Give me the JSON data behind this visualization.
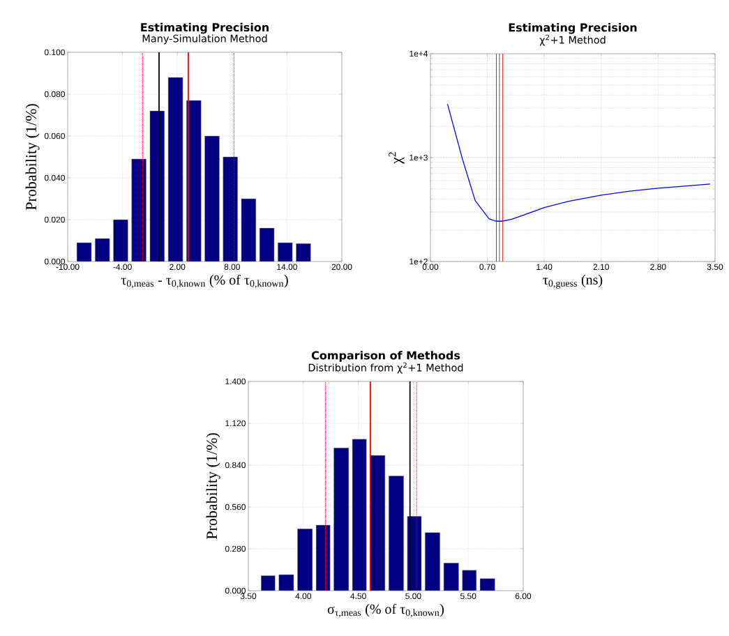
{
  "chart_data": [
    {
      "type": "histogram",
      "title": "Estimating Precision",
      "subtitle": "Many-Simulation Method",
      "xlabel": "τ$_{0,meas}$ - τ$_{0,known}$ (% of τ$_{0,known}$)",
      "ylabel": "Probability (1/%)",
      "color": "#000080",
      "bins": [
        -9.2,
        -7.2,
        -5.2,
        -3.2,
        -1.2,
        0.8,
        2.8,
        4.8,
        6.8,
        8.8,
        10.8,
        12.8,
        14.8,
        16.8
      ],
      "values": [
        0.009,
        0.011,
        0.02,
        0.049,
        0.072,
        0.088,
        0.077,
        0.06,
        0.05,
        0.03,
        0.016,
        0.009,
        0.0086
      ],
      "xlim": [
        -10,
        20
      ],
      "ylim": [
        0,
        0.1
      ],
      "xticks": [
        {
          "value": -10,
          "label": "-10.00"
        },
        {
          "value": -4,
          "label": "-4.00"
        },
        {
          "value": 2,
          "label": "2.00"
        },
        {
          "value": 8,
          "label": "8.00"
        },
        {
          "value": 14,
          "label": "14.00"
        },
        {
          "value": 20,
          "label": "20.00"
        }
      ],
      "yticks": [
        {
          "value": 0,
          "label": "0.000"
        },
        {
          "value": 0.02,
          "label": "0.020"
        },
        {
          "value": 0.04,
          "label": "0.040"
        },
        {
          "value": 0.06,
          "label": "0.060"
        },
        {
          "value": 0.08,
          "label": "0.080"
        },
        {
          "value": 0.1,
          "label": "0.100"
        }
      ],
      "ref_lines": [
        {
          "axis": "x",
          "value": 0,
          "color": "#000000",
          "line_style": "solid"
        },
        {
          "axis": "x",
          "value": 3.2,
          "color": "#ff0000",
          "line_style": "solid"
        },
        {
          "axis": "x",
          "value": -1.8,
          "color": "#ff0000",
          "line_style": "dotted"
        },
        {
          "axis": "x",
          "value": 8.2,
          "color": "#ff0000",
          "line_style": "dotted"
        }
      ],
      "grid": true
    },
    {
      "type": "line",
      "title": "Estimating Precision",
      "subtitle": "χ$^{2}$+1 Method",
      "xlabel": "τ$_{0,guess}$ (ns)",
      "ylabel": "χ$^{2}$",
      "log": "y",
      "series": [
        {
          "color": "#0000ff",
          "x": [
            0.21,
            0.39,
            0.55,
            0.72,
            0.8,
            0.88,
            1.0,
            1.2,
            1.4,
            1.7,
            2.1,
            2.45,
            2.8,
            3.1,
            3.44
          ],
          "values": [
            3280,
            990,
            386,
            258,
            245,
            244,
            255,
            290,
            330,
            380,
            435,
            475,
            507,
            530,
            557
          ]
        }
      ],
      "xlim": [
        0,
        3.5
      ],
      "ylim": [
        100,
        10000
      ],
      "xticks": [
        {
          "value": 0,
          "label": "0.00"
        },
        {
          "value": 0.7,
          "label": "0.70"
        },
        {
          "value": 1.4,
          "label": "1.40"
        },
        {
          "value": 2.1,
          "label": "2.10"
        },
        {
          "value": 2.8,
          "label": "2.80"
        },
        {
          "value": 3.5,
          "label": "3.50"
        }
      ],
      "yticks": [
        {
          "value": 100,
          "label": "1e+2"
        },
        {
          "value": 1000,
          "label": "1e+3"
        },
        {
          "value": 10000,
          "label": "1e+4"
        }
      ],
      "ref_lines": [
        {
          "axis": "x",
          "value": 0.81,
          "color": "#ff0000",
          "line_style": "solid"
        },
        {
          "axis": "x",
          "value": 0.85,
          "color": "#333333",
          "line_style": "solid"
        },
        {
          "axis": "x",
          "value": 0.89,
          "color": "#ff0000",
          "line_style": "solid"
        }
      ],
      "grid": true
    },
    {
      "type": "histogram",
      "title": "Comparison of Methods",
      "subtitle": "Distribution from χ$^{2}$+1 Method",
      "xlabel": "σ$_{τ,meas}$ (% of τ$_{0,known}$)",
      "ylabel": "Probability (1/%)",
      "color": "#000080",
      "bins": [
        3.6,
        3.76,
        3.93,
        4.1,
        4.26,
        4.43,
        4.59,
        4.76,
        4.93,
        5.09,
        5.26,
        5.43,
        5.59,
        5.76
      ],
      "values": [
        0.1,
        0.107,
        0.414,
        0.439,
        0.955,
        1.014,
        0.905,
        0.768,
        0.498,
        0.389,
        0.185,
        0.137,
        0.081
      ],
      "xlim": [
        3.5,
        6
      ],
      "ylim": [
        0,
        1.4
      ],
      "xticks": [
        {
          "value": 3.5,
          "label": "3.50"
        },
        {
          "value": 4,
          "label": "4.00"
        },
        {
          "value": 4.5,
          "label": "4.50"
        },
        {
          "value": 5,
          "label": "5.00"
        },
        {
          "value": 5.5,
          "label": "5.50"
        },
        {
          "value": 6,
          "label": "6.00"
        }
      ],
      "yticks": [
        {
          "value": 0,
          "label": "0.000"
        },
        {
          "value": 0.28,
          "label": "0.280"
        },
        {
          "value": 0.56,
          "label": "0.560"
        },
        {
          "value": 0.84,
          "label": "0.840"
        },
        {
          "value": 1.12,
          "label": "1.120"
        },
        {
          "value": 1.4,
          "label": "1.400"
        }
      ],
      "ref_lines": [
        {
          "axis": "x",
          "value": 4.61,
          "color": "#ff0000",
          "line_style": "solid"
        },
        {
          "axis": "x",
          "value": 4.97,
          "color": "#000000",
          "line_style": "solid"
        },
        {
          "axis": "x",
          "value": 4.2,
          "color": "#ff0000",
          "line_style": "dotted"
        },
        {
          "axis": "x",
          "value": 5.03,
          "color": "#ff0000",
          "line_style": "dotted"
        }
      ],
      "grid": true
    }
  ]
}
